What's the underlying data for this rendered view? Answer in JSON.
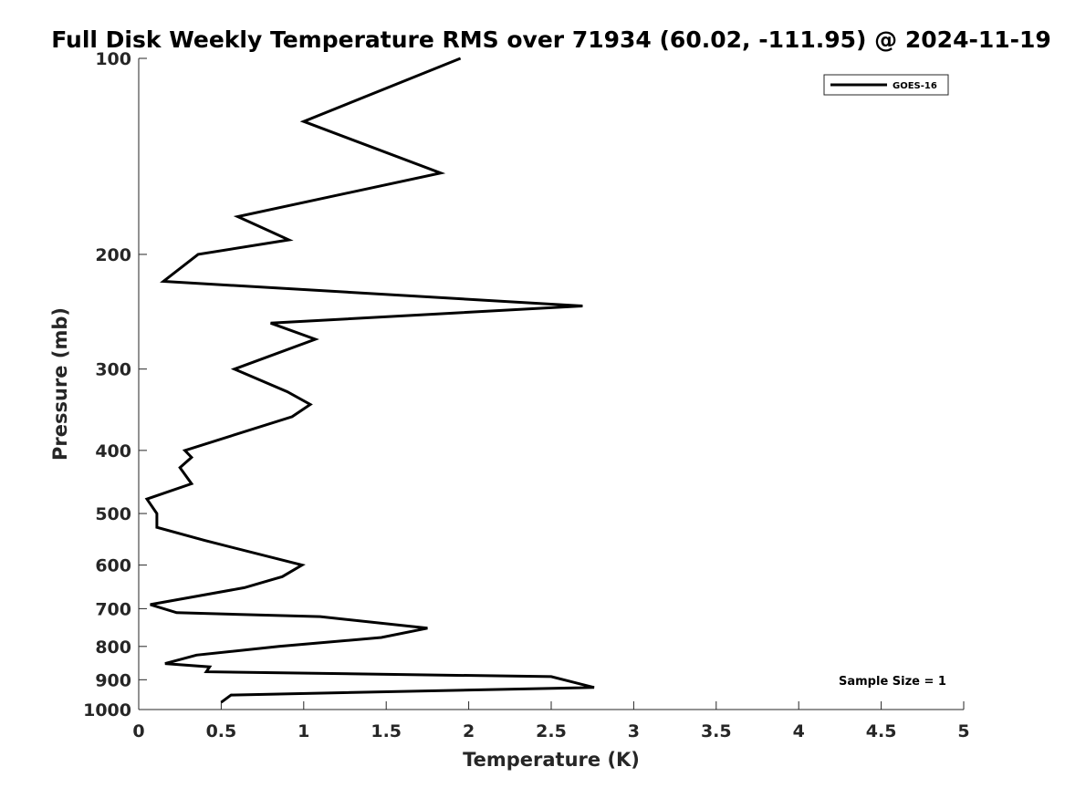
{
  "chart_data": {
    "type": "line",
    "title": "Full Disk Weekly Temperature RMS over 71934 (60.02, -111.95) @ 2024-11-19",
    "xlabel": "Temperature (K)",
    "ylabel": "Pressure (mb)",
    "xlim": [
      0,
      5
    ],
    "ylim": [
      100,
      1000
    ],
    "y_scale": "log",
    "y_reversed": true,
    "x_ticks": [
      "0",
      "0.5",
      "1",
      "1.5",
      "2",
      "2.5",
      "3",
      "3.5",
      "4",
      "4.5",
      "5"
    ],
    "y_ticks": [
      "100",
      "200",
      "300",
      "400",
      "500",
      "600",
      "700",
      "800",
      "900",
      "1000"
    ],
    "grid": false,
    "legend_position": "top-right",
    "annotation": "Sample Size = 1",
    "series": [
      {
        "name": "GOES-16",
        "color": "#000000",
        "points": [
          [
            1.95,
            100
          ],
          [
            1.0,
            125
          ],
          [
            1.83,
            150
          ],
          [
            0.6,
            175
          ],
          [
            0.91,
            190
          ],
          [
            0.36,
            200
          ],
          [
            0.15,
            220
          ],
          [
            2.69,
            240
          ],
          [
            0.8,
            255
          ],
          [
            1.07,
            270
          ],
          [
            0.58,
            300
          ],
          [
            0.9,
            325
          ],
          [
            1.04,
            340
          ],
          [
            0.93,
            355
          ],
          [
            0.28,
            400
          ],
          [
            0.32,
            410
          ],
          [
            0.25,
            425
          ],
          [
            0.32,
            450
          ],
          [
            0.05,
            475
          ],
          [
            0.11,
            500
          ],
          [
            0.11,
            525
          ],
          [
            0.4,
            550
          ],
          [
            0.99,
            600
          ],
          [
            0.87,
            625
          ],
          [
            0.64,
            650
          ],
          [
            0.07,
            690
          ],
          [
            0.23,
            710
          ],
          [
            1.1,
            720
          ],
          [
            1.75,
            750
          ],
          [
            1.47,
            775
          ],
          [
            0.85,
            800
          ],
          [
            0.35,
            825
          ],
          [
            0.16,
            850
          ],
          [
            0.43,
            860
          ],
          [
            0.41,
            875
          ],
          [
            2.5,
            890
          ],
          [
            2.76,
            925
          ],
          [
            0.56,
            950
          ],
          [
            0.5,
            975
          ]
        ]
      }
    ]
  }
}
